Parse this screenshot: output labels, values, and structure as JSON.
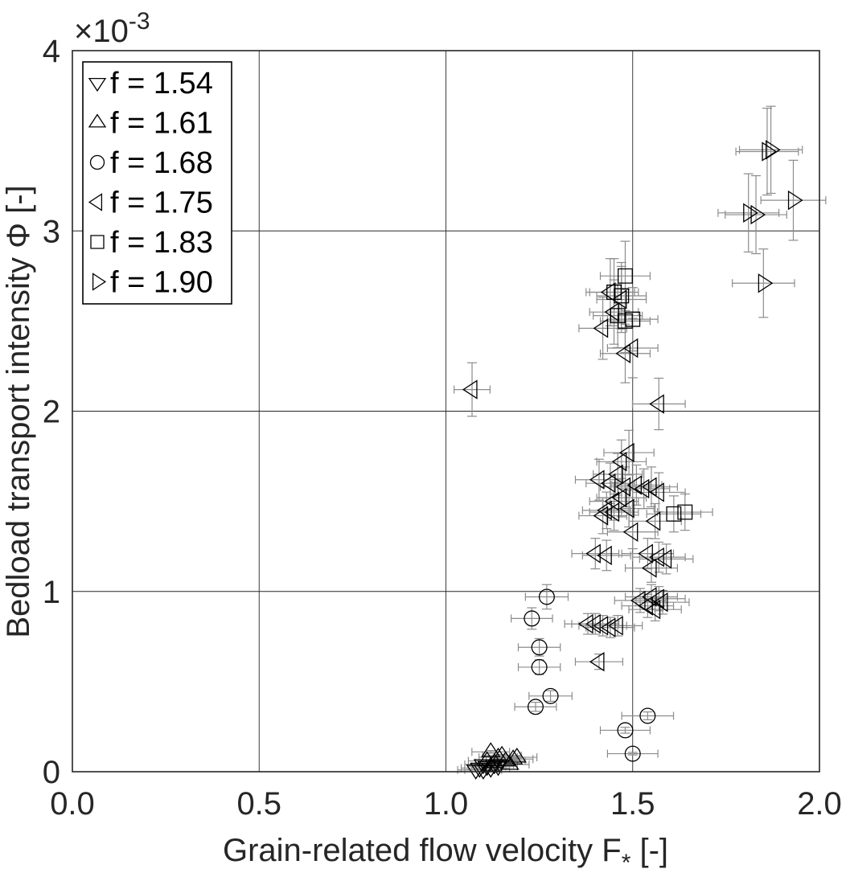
{
  "chart_data": {
    "type": "scatter",
    "title": "",
    "xlabel": "Grain-related flow velocity F",
    "xlabel_sub": "*",
    "xlabel_unit": " [-]",
    "ylabel": "Bedload transport intensity Φ [-]",
    "y_exponent_label": "×10",
    "y_exponent_power": "-3",
    "xlim": [
      0.0,
      2.0
    ],
    "ylim": [
      0,
      4
    ],
    "x_ticks": [
      "0.0",
      "0.5",
      "1.0",
      "1.5",
      "2.0"
    ],
    "x_tick_values": [
      0.0,
      0.5,
      1.0,
      1.5,
      2.0
    ],
    "y_ticks": [
      "0",
      "1",
      "2",
      "3",
      "4"
    ],
    "y_tick_values": [
      0,
      1,
      2,
      3,
      4
    ],
    "grid": true,
    "legend_position": "top-left",
    "errorbars": true,
    "series": [
      {
        "name": "f = 1.54",
        "marker": "triangle-down",
        "points": [
          [
            1.08,
            0.01
          ],
          [
            1.09,
            0.02
          ],
          [
            1.1,
            0.01
          ],
          [
            1.11,
            0.03
          ],
          [
            1.12,
            0.02
          ],
          [
            1.13,
            0.04
          ],
          [
            1.14,
            0.03
          ],
          [
            1.1,
            0.04
          ]
        ]
      },
      {
        "name": "f = 1.61",
        "marker": "triangle-up",
        "points": [
          [
            1.12,
            0.11
          ],
          [
            1.14,
            0.08
          ],
          [
            1.16,
            0.06
          ],
          [
            1.13,
            0.05
          ],
          [
            1.15,
            0.09
          ],
          [
            1.18,
            0.07
          ],
          [
            1.11,
            0.06
          ],
          [
            1.17,
            0.04
          ],
          [
            1.19,
            0.08
          ],
          [
            1.12,
            0.03
          ]
        ]
      },
      {
        "name": "f = 1.68",
        "marker": "circle",
        "points": [
          [
            1.27,
            0.97
          ],
          [
            1.23,
            0.85
          ],
          [
            1.25,
            0.69
          ],
          [
            1.25,
            0.58
          ],
          [
            1.28,
            0.42
          ],
          [
            1.24,
            0.36
          ],
          [
            1.54,
            0.31
          ],
          [
            1.48,
            0.23
          ],
          [
            1.5,
            0.1
          ]
        ]
      },
      {
        "name": "f = 1.75",
        "marker": "triangle-left",
        "points": [
          [
            1.07,
            2.12
          ],
          [
            1.57,
            2.04
          ],
          [
            1.5,
            2.35
          ],
          [
            1.48,
            2.32
          ],
          [
            1.42,
            2.46
          ],
          [
            1.45,
            2.55
          ],
          [
            1.47,
            2.62
          ],
          [
            1.44,
            2.66
          ],
          [
            1.49,
            1.77
          ],
          [
            1.47,
            1.72
          ],
          [
            1.46,
            1.65
          ],
          [
            1.41,
            1.62
          ],
          [
            1.44,
            1.6
          ],
          [
            1.48,
            1.58
          ],
          [
            1.51,
            1.59
          ],
          [
            1.53,
            1.57
          ],
          [
            1.55,
            1.58
          ],
          [
            1.57,
            1.55
          ],
          [
            1.45,
            1.5
          ],
          [
            1.47,
            1.52
          ],
          [
            1.43,
            1.45
          ],
          [
            1.45,
            1.44
          ],
          [
            1.42,
            1.42
          ],
          [
            1.49,
            1.46
          ],
          [
            1.56,
            1.39
          ],
          [
            1.5,
            1.33
          ],
          [
            1.4,
            1.21
          ],
          [
            1.43,
            1.2
          ],
          [
            1.54,
            1.21
          ],
          [
            1.57,
            1.19
          ],
          [
            1.59,
            1.18
          ],
          [
            1.55,
            1.13
          ],
          [
            1.52,
            0.95
          ],
          [
            1.55,
            0.97
          ],
          [
            1.57,
            0.96
          ],
          [
            1.54,
            0.92
          ],
          [
            1.56,
            0.9
          ],
          [
            1.58,
            0.94
          ],
          [
            1.38,
            0.82
          ],
          [
            1.4,
            0.82
          ],
          [
            1.42,
            0.81
          ],
          [
            1.44,
            0.8
          ],
          [
            1.46,
            0.81
          ],
          [
            1.41,
            0.61
          ]
        ]
      },
      {
        "name": "f = 1.83",
        "marker": "square",
        "points": [
          [
            1.48,
            2.75
          ],
          [
            1.45,
            2.66
          ],
          [
            1.47,
            2.64
          ],
          [
            1.46,
            2.53
          ],
          [
            1.48,
            2.5
          ],
          [
            1.5,
            2.51
          ],
          [
            1.61,
            1.43
          ],
          [
            1.64,
            1.44
          ]
        ]
      },
      {
        "name": "f = 1.90",
        "marker": "triangle-right",
        "points": [
          [
            1.87,
            3.45
          ],
          [
            1.86,
            3.44
          ],
          [
            1.93,
            3.17
          ],
          [
            1.81,
            3.1
          ],
          [
            1.83,
            3.09
          ],
          [
            1.85,
            2.71
          ]
        ]
      }
    ]
  }
}
